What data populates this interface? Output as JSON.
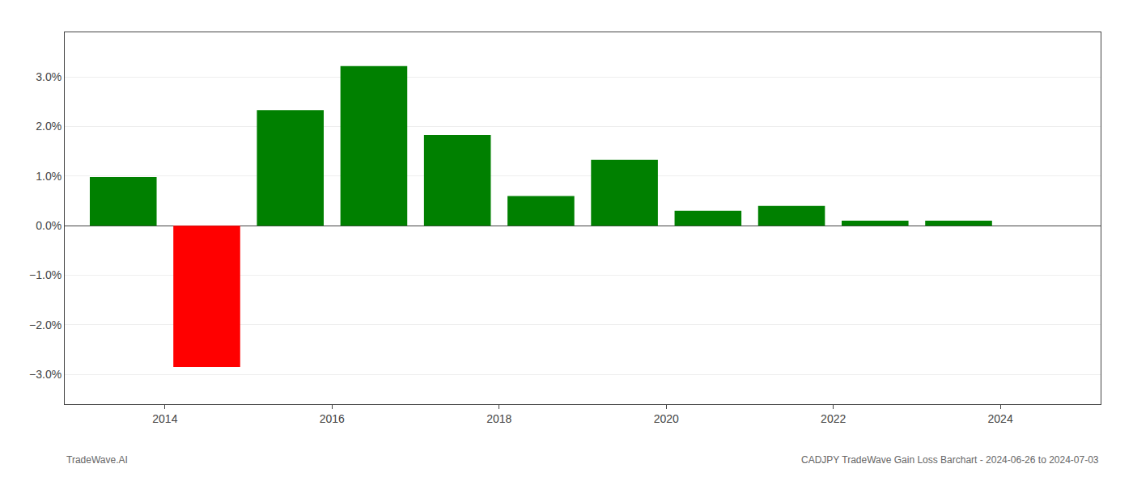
{
  "chart_data": {
    "type": "bar",
    "x": [
      2013.5,
      2014.5,
      2015.5,
      2016.5,
      2017.5,
      2018.5,
      2019.5,
      2020.5,
      2021.5,
      2022.5,
      2023.5
    ],
    "values": [
      0.0098,
      -0.0285,
      0.0233,
      0.0322,
      0.0183,
      0.006,
      0.0133,
      0.003,
      0.004,
      0.001,
      0.001
    ],
    "colors": [
      "#008000",
      "#ff0000",
      "#008000",
      "#008000",
      "#008000",
      "#008000",
      "#008000",
      "#008000",
      "#008000",
      "#008000",
      "#008000"
    ],
    "xlim": [
      2012.8,
      2025.2
    ],
    "xticks": [
      2014,
      2016,
      2018,
      2020,
      2022,
      2024
    ],
    "ylim": [
      -0.036,
      0.039
    ],
    "yticks": [
      {
        "value": -0.03,
        "label": "−3.0%"
      },
      {
        "value": -0.02,
        "label": "−2.0%"
      },
      {
        "value": -0.01,
        "label": "−1.0%"
      },
      {
        "value": 0.0,
        "label": "0.0%"
      },
      {
        "value": 0.01,
        "label": "1.0%"
      },
      {
        "value": 0.02,
        "label": "2.0%"
      },
      {
        "value": 0.03,
        "label": "3.0%"
      }
    ],
    "grid": true,
    "annotations": [
      "TradeWave.AI",
      "CADJPY TradeWave Gain Loss Barchart - 2024-06-26 to 2024-07-03"
    ]
  }
}
